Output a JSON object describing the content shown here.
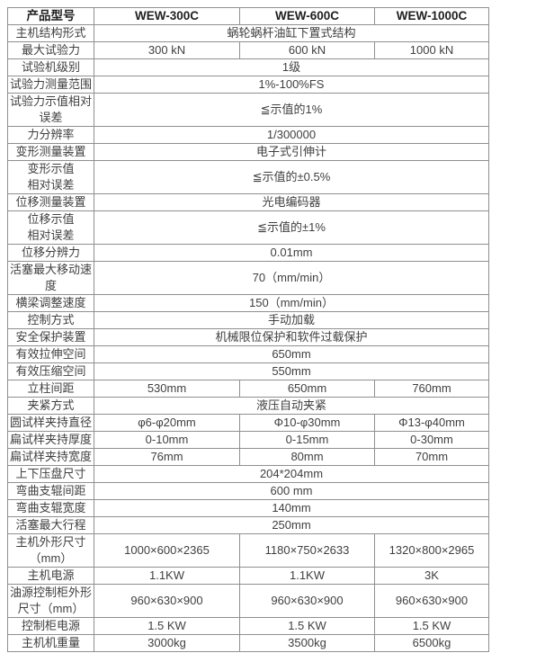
{
  "colors": {
    "border": "#8f8f8f",
    "header_text": "#1f1f1f",
    "body_text": "#404040",
    "page_background": "#ffffff"
  },
  "table": {
    "header": [
      "产品型号",
      "WEW-300C",
      "WEW-600C",
      "WEW-1000C"
    ],
    "rows": [
      {
        "label": "主机结构形式",
        "merged": "蜗轮蜗杆油缸下置式结构"
      },
      {
        "label": "最大试验力",
        "values": [
          "300 kN",
          "600 kN",
          "1000 kN"
        ]
      },
      {
        "label": "试验机级别",
        "merged": "1级"
      },
      {
        "label": "试验力测量范围",
        "merged": "1%-100%FS"
      },
      {
        "label": "试验力示值相对\n误差",
        "merged": "≦示值的1%"
      },
      {
        "label": "力分辨率",
        "merged": "1/300000"
      },
      {
        "label": "变形测量装置",
        "merged": "电子式引伸计"
      },
      {
        "label": "变形示值\n相对误差",
        "merged": "≦示值的±0.5%"
      },
      {
        "label": "位移测量装置",
        "merged": "光电编码器"
      },
      {
        "label": "位移示值\n相对误差",
        "merged": "≦示值的±1%"
      },
      {
        "label": "位移分辨力",
        "merged": "0.01mm"
      },
      {
        "label": "活塞最大移动速\n度",
        "merged": "70（mm/min）"
      },
      {
        "label": "横梁调整速度",
        "merged": "150（mm/min）"
      },
      {
        "label": "控制方式",
        "merged": "手动加载"
      },
      {
        "label": "安全保护装置",
        "merged": "机械限位保护和软件过载保护"
      },
      {
        "label": "有效拉伸空间",
        "merged": "650mm"
      },
      {
        "label": "有效压缩空间",
        "merged": "550mm"
      },
      {
        "label": "立柱间距",
        "values": [
          "530mm",
          "650mm",
          "760mm"
        ]
      },
      {
        "label": "夹紧方式",
        "merged": "液压自动夹紧"
      },
      {
        "label": "圆试样夹持直径",
        "values": [
          "φ6-φ20mm",
          "Φ10-φ30mm",
          "Φ13-φ40mm"
        ]
      },
      {
        "label": "扁试样夹持厚度",
        "values": [
          "0-10mm",
          "0-15mm",
          "0-30mm"
        ]
      },
      {
        "label": "扁试样夹持宽度",
        "values": [
          "76mm",
          "80mm",
          "70mm"
        ]
      },
      {
        "label": "上下压盘尺寸",
        "merged": "204*204mm"
      },
      {
        "label": "弯曲支辊间距",
        "merged": "600 mm"
      },
      {
        "label": "弯曲支辊宽度",
        "merged": "140mm"
      },
      {
        "label": "活塞最大行程",
        "merged": "250mm"
      },
      {
        "label": "主机外形尺寸\n（mm）",
        "values": [
          "1000×600×2365",
          "1180×750×2633",
          "1320×800×2965"
        ]
      },
      {
        "label": "主机电源",
        "values": [
          "1.1KW",
          "1.1KW",
          "3K"
        ]
      },
      {
        "label": "油源控制柜外形\n尺寸（mm）",
        "values": [
          "960×630×900",
          "960×630×900",
          "960×630×900"
        ]
      },
      {
        "label": "控制柜电源",
        "values": [
          "1.5 KW",
          "1.5 KW",
          "1.5 KW"
        ]
      },
      {
        "label": "主机机重量",
        "values": [
          "3000kg",
          "3500kg",
          "6500kg"
        ]
      }
    ]
  }
}
